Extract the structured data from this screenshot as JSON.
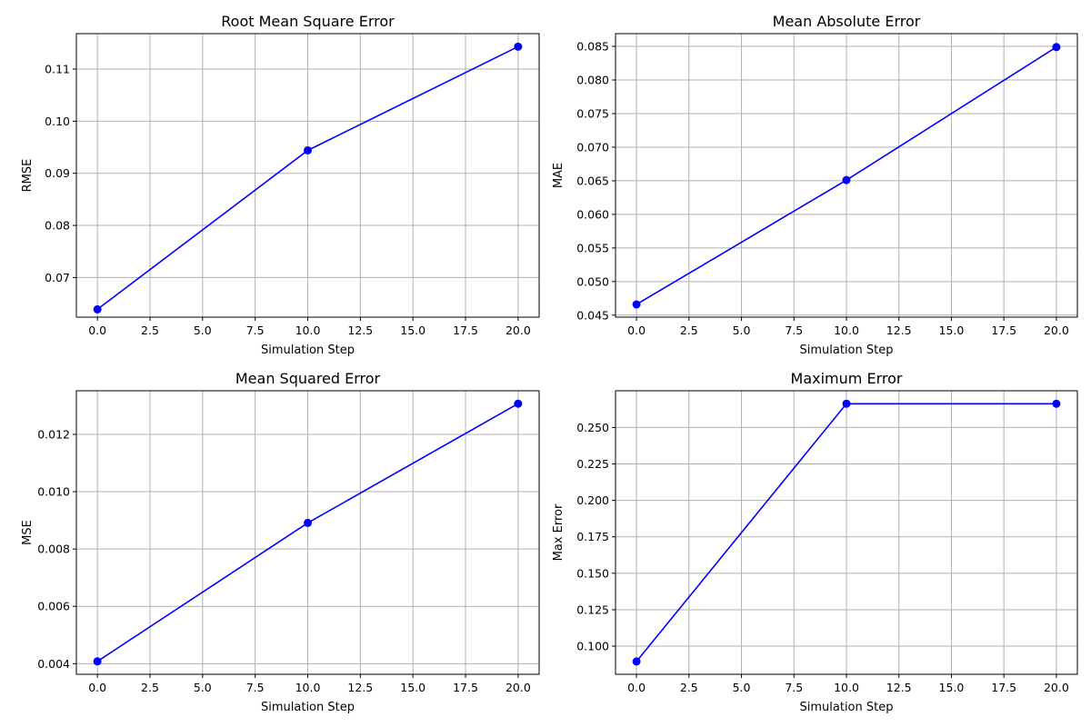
{
  "figure": {
    "background": "#ffffff",
    "line_color": "#0000ff",
    "grid_color": "#b0b0b0"
  },
  "chart_data": [
    {
      "type": "line",
      "title": "Root Mean Square Error",
      "xlabel": "Simulation Step",
      "ylabel": "RMSE",
      "x": [
        0,
        10,
        20
      ],
      "series": [
        {
          "values": [
            0.0639,
            0.0944,
            0.1143
          ]
        }
      ],
      "xlim": [
        -1,
        21
      ],
      "ylim": [
        0.0624,
        0.1168
      ],
      "xticks": [
        0,
        2.5,
        5,
        7.5,
        10,
        12.5,
        15,
        17.5,
        20
      ],
      "xtick_labels": [
        "0.0",
        "2.5",
        "5.0",
        "7.5",
        "10.0",
        "12.5",
        "15.0",
        "17.5",
        "20.0"
      ],
      "yticks": [
        0.07,
        0.08,
        0.09,
        0.1,
        0.11
      ],
      "ytick_labels": [
        "0.07",
        "0.08",
        "0.09",
        "0.10",
        "0.11"
      ],
      "grid": true,
      "marker": "circle"
    },
    {
      "type": "line",
      "title": "Mean Absolute Error",
      "xlabel": "Simulation Step",
      "ylabel": "MAE",
      "x": [
        0,
        10,
        20
      ],
      "series": [
        {
          "values": [
            0.0466,
            0.0651,
            0.0849
          ]
        }
      ],
      "xlim": [
        -1,
        21
      ],
      "ylim": [
        0.0447,
        0.0869
      ],
      "xticks": [
        0,
        2.5,
        5,
        7.5,
        10,
        12.5,
        15,
        17.5,
        20
      ],
      "xtick_labels": [
        "0.0",
        "2.5",
        "5.0",
        "7.5",
        "10.0",
        "12.5",
        "15.0",
        "17.5",
        "20.0"
      ],
      "yticks": [
        0.045,
        0.05,
        0.055,
        0.06,
        0.065,
        0.07,
        0.075,
        0.08,
        0.085
      ],
      "ytick_labels": [
        "0.045",
        "0.050",
        "0.055",
        "0.060",
        "0.065",
        "0.070",
        "0.075",
        "0.080",
        "0.085"
      ],
      "grid": true,
      "marker": "circle"
    },
    {
      "type": "line",
      "title": "Mean Squared Error",
      "xlabel": "Simulation Step",
      "ylabel": "MSE",
      "x": [
        0,
        10,
        20
      ],
      "series": [
        {
          "values": [
            0.00408,
            0.00891,
            0.01307
          ]
        }
      ],
      "xlim": [
        -1,
        21
      ],
      "ylim": [
        0.00363,
        0.01352
      ],
      "xticks": [
        0,
        2.5,
        5,
        7.5,
        10,
        12.5,
        15,
        17.5,
        20
      ],
      "xtick_labels": [
        "0.0",
        "2.5",
        "5.0",
        "7.5",
        "10.0",
        "12.5",
        "15.0",
        "17.5",
        "20.0"
      ],
      "yticks": [
        0.004,
        0.006,
        0.008,
        0.01,
        0.012
      ],
      "ytick_labels": [
        "0.004",
        "0.006",
        "0.008",
        "0.010",
        "0.012"
      ],
      "grid": true,
      "marker": "circle"
    },
    {
      "type": "line",
      "title": "Maximum Error",
      "xlabel": "Simulation Step",
      "ylabel": "Max Error",
      "x": [
        0,
        10,
        20
      ],
      "series": [
        {
          "values": [
            0.0895,
            0.2663,
            0.2663
          ]
        }
      ],
      "xlim": [
        -1,
        21
      ],
      "ylim": [
        0.0807,
        0.2752
      ],
      "xticks": [
        0,
        2.5,
        5,
        7.5,
        10,
        12.5,
        15,
        17.5,
        20
      ],
      "xtick_labels": [
        "0.0",
        "2.5",
        "5.0",
        "7.5",
        "10.0",
        "12.5",
        "15.0",
        "17.5",
        "20.0"
      ],
      "yticks": [
        0.1,
        0.125,
        0.15,
        0.175,
        0.2,
        0.225,
        0.25
      ],
      "ytick_labels": [
        "0.100",
        "0.125",
        "0.150",
        "0.175",
        "0.200",
        "0.225",
        "0.250"
      ],
      "grid": true,
      "marker": "circle"
    }
  ]
}
